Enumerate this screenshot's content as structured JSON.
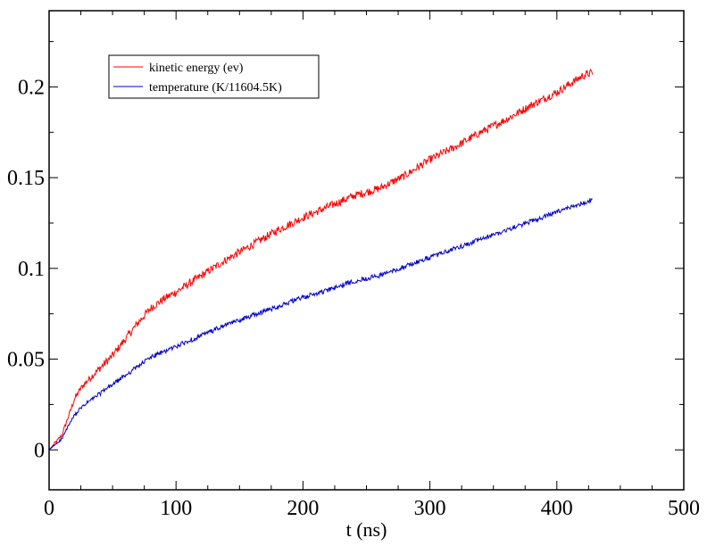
{
  "chart_data": {
    "type": "line",
    "title": "",
    "xlabel": "t (ns)",
    "ylabel": "",
    "xlim": [
      0,
      500
    ],
    "ylim": [
      -0.022,
      0.242
    ],
    "grid": false,
    "legend_position": "top-left",
    "x_ticks": [
      0,
      100,
      200,
      300,
      400,
      500
    ],
    "x_tick_labels": [
      "0",
      "100",
      "200",
      "300",
      "400",
      "500"
    ],
    "y_ticks": [
      0,
      0.05,
      0.1,
      0.15,
      0.2
    ],
    "y_tick_labels": [
      "0",
      "0.05",
      "0.1",
      "0.15",
      "0.2"
    ],
    "series": [
      {
        "name": "kinetic energy (ev)",
        "color": "#ff0000",
        "x": [
          0,
          5,
          10,
          15,
          20,
          25,
          30,
          40,
          50,
          60,
          70,
          80,
          90,
          100,
          120,
          140,
          160,
          180,
          200,
          220,
          240,
          260,
          280,
          300,
          320,
          340,
          360,
          380,
          400,
          420,
          428
        ],
        "y": [
          0,
          0.004,
          0.008,
          0.018,
          0.028,
          0.034,
          0.038,
          0.045,
          0.052,
          0.061,
          0.07,
          0.078,
          0.083,
          0.087,
          0.096,
          0.105,
          0.113,
          0.121,
          0.128,
          0.134,
          0.14,
          0.144,
          0.151,
          0.16,
          0.167,
          0.175,
          0.182,
          0.19,
          0.197,
          0.206,
          0.208
        ]
      },
      {
        "name": "temperature (K/11604.5K)",
        "color": "#0000cc",
        "x": [
          0,
          5,
          10,
          15,
          20,
          25,
          30,
          40,
          50,
          60,
          70,
          80,
          90,
          100,
          120,
          140,
          160,
          180,
          200,
          220,
          240,
          260,
          280,
          300,
          320,
          340,
          360,
          380,
          400,
          420,
          428
        ],
        "y": [
          0,
          0.003,
          0.006,
          0.013,
          0.019,
          0.023,
          0.026,
          0.031,
          0.036,
          0.041,
          0.046,
          0.051,
          0.054,
          0.057,
          0.063,
          0.069,
          0.074,
          0.079,
          0.084,
          0.088,
          0.093,
          0.096,
          0.101,
          0.106,
          0.111,
          0.116,
          0.121,
          0.126,
          0.131,
          0.136,
          0.138
        ]
      }
    ]
  }
}
